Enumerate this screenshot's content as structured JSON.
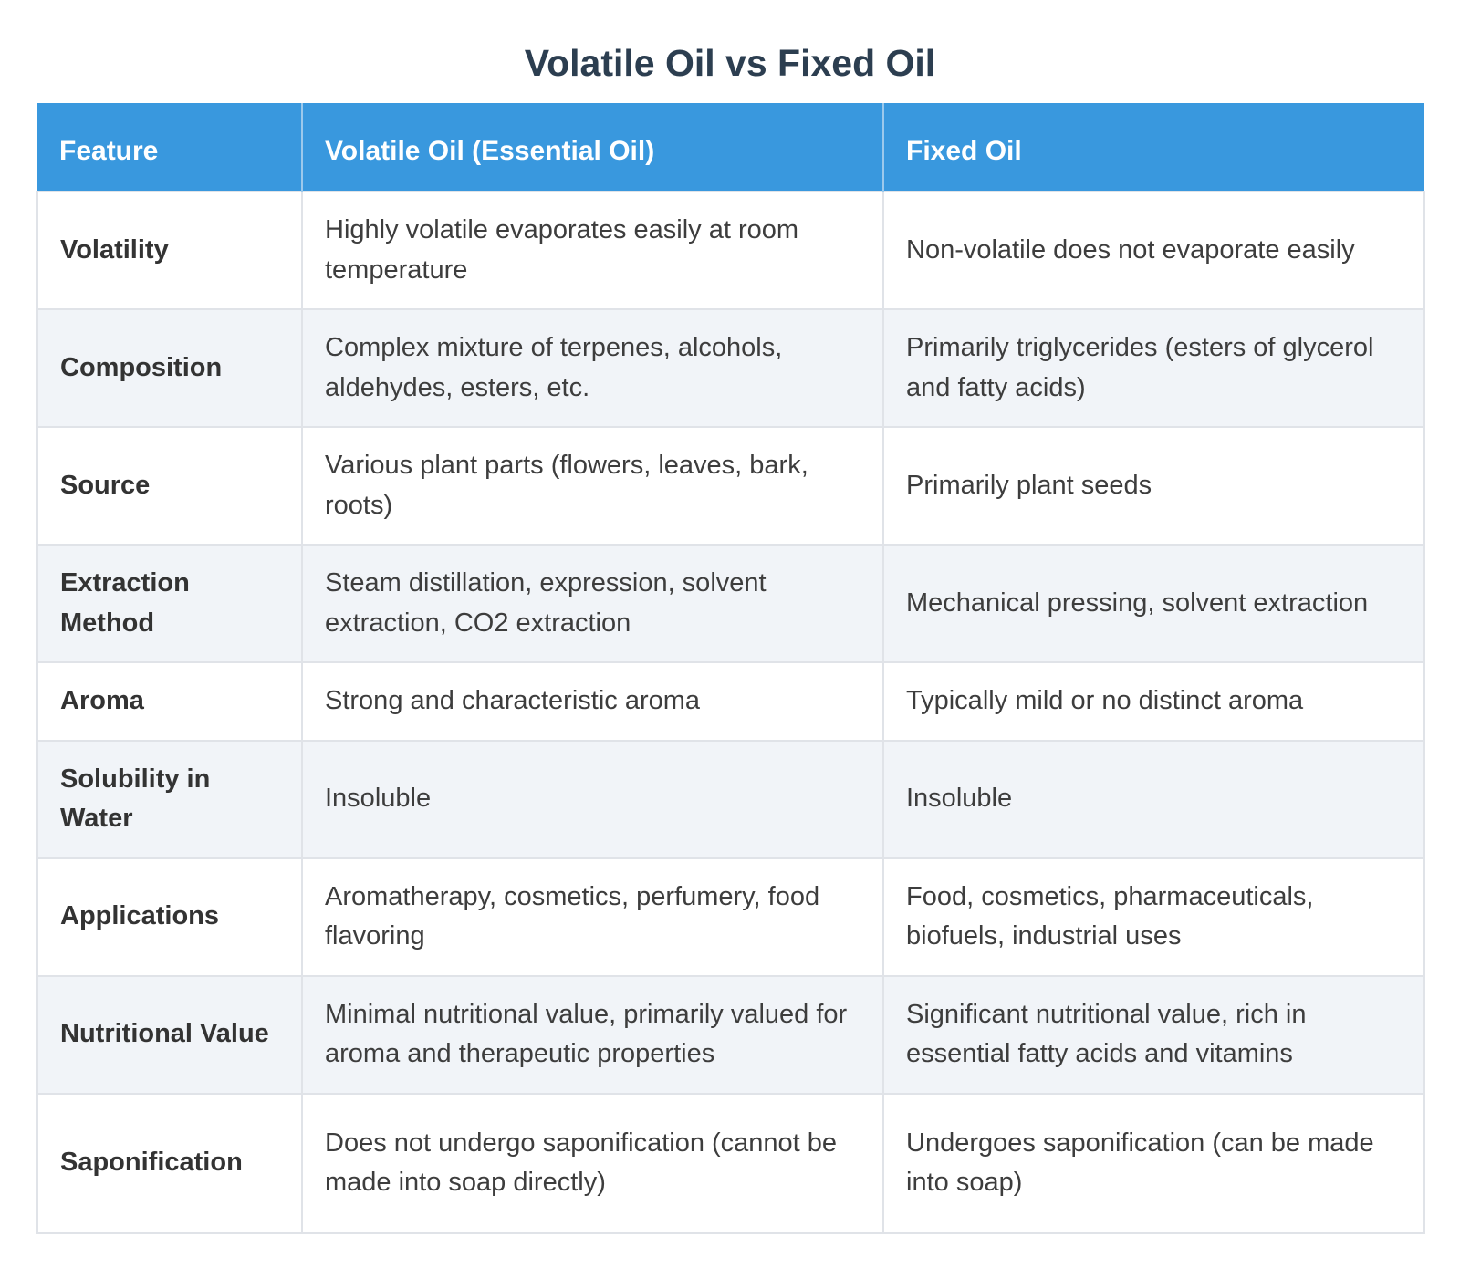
{
  "title": "Volatile Oil vs Fixed Oil",
  "colors": {
    "header_bg": "#3998de",
    "header_text": "#ffffff",
    "title_text": "#2c3e50",
    "row_bg": "#ffffff",
    "row_alt_bg": "#f1f4f8",
    "border": "#e0e3e8",
    "body_text": "#3d3d3d"
  },
  "table": {
    "headers": [
      "Feature",
      "Volatile Oil (Essential Oil)",
      "Fixed Oil"
    ],
    "rows": [
      {
        "feature": "Volatility",
        "volatile": "Highly volatile evaporates easily at room temperature",
        "fixed": "Non-volatile does not evaporate easily"
      },
      {
        "feature": "Composition",
        "volatile": "Complex mixture of terpenes, alcohols, aldehydes, esters, etc.",
        "fixed": "Primarily triglycerides (esters of glycerol and fatty acids)"
      },
      {
        "feature": "Source",
        "volatile": "Various plant parts (flowers, leaves, bark, roots)",
        "fixed": "Primarily plant seeds"
      },
      {
        "feature": "Extraction Method",
        "volatile": "Steam distillation, expression, solvent extraction, CO2 extraction",
        "fixed": "Mechanical pressing, solvent extraction"
      },
      {
        "feature": "Aroma",
        "volatile": "Strong and characteristic aroma",
        "fixed": "Typically mild or no distinct aroma"
      },
      {
        "feature": "Solubility in Water",
        "volatile": "Insoluble",
        "fixed": "Insoluble"
      },
      {
        "feature": "Applications",
        "volatile": "Aromatherapy, cosmetics, perfumery, food flavoring",
        "fixed": "Food, cosmetics, pharmaceuticals, biofuels, industrial uses"
      },
      {
        "feature": "Nutritional Value",
        "volatile": "Minimal nutritional value, primarily valued for aroma and therapeutic properties",
        "fixed": "Significant nutritional value, rich in essential fatty acids and vitamins"
      },
      {
        "feature": "Saponification",
        "volatile": "Does not undergo saponification (cannot be made into soap directly)",
        "fixed": "Undergoes saponification (can be made into soap)"
      }
    ]
  }
}
